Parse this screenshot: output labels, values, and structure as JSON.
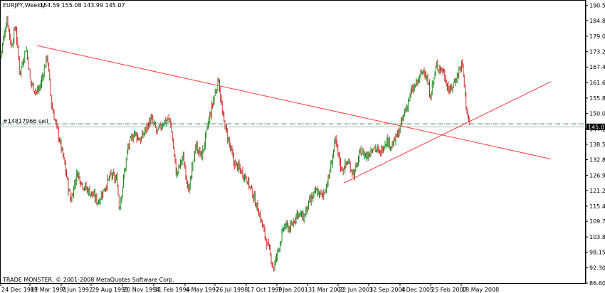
{
  "header": {
    "symbol_timeframe": "EURJPY,Weekly",
    "ohlc": "154.59 155.08 143.99 145.07"
  },
  "order_label": "#14817966 sell",
  "price_tag": "145.07",
  "footer": "TRADE MONSTER, © 2001-2008 MetaQuotes Software Corp.",
  "colors": {
    "bull": "#228b22",
    "bear": "#d22b2b",
    "trendline": "#ff3a3a",
    "order_line": "#2e8b57",
    "price_line": "#b0b0b0",
    "tag_bg": "#000000",
    "tag_fg": "#ffffff"
  },
  "chart_data": {
    "type": "candlestick",
    "y_ticks": [
      "190.55",
      "184.85",
      "179.00",
      "173.20",
      "167.45",
      "161.60",
      "155.85",
      "150.05",
      "144.25",
      "138.50",
      "132.80",
      "126.95",
      "121.25",
      "115.40",
      "109.70",
      "103.85",
      "98.15",
      "92.30",
      "86.60"
    ],
    "x_ticks": [
      "24 Dec 1989",
      "17 Mar 1991",
      "7 Jun 1992",
      "29 Aug 1993",
      "20 Nov 1994",
      "11 Feb 1996",
      "4 May 1997",
      "26 Jul 1998",
      "17 Oct 1999",
      "7 Jan 2001",
      "31 Mar 2002",
      "22 Jun 2003",
      "12 Sep 2004",
      "4 Dec 2005",
      "25 Feb 2007",
      "18 May 2008"
    ],
    "ylim": [
      86.6,
      192
    ],
    "order_level": 146.2,
    "current_price": 145.07,
    "path": [
      [
        0,
        172
      ],
      [
        1.5,
        186
      ],
      [
        2.5,
        175
      ],
      [
        3.5,
        183
      ],
      [
        4.5,
        165
      ],
      [
        6,
        175
      ],
      [
        7,
        162
      ],
      [
        8.5,
        158
      ],
      [
        9.3,
        160
      ],
      [
        11,
        172
      ],
      [
        12,
        153
      ],
      [
        13.5,
        143
      ],
      [
        15,
        132
      ],
      [
        16.5,
        117
      ],
      [
        18,
        128
      ],
      [
        19.5,
        123
      ],
      [
        21.5,
        120
      ],
      [
        23,
        117
      ],
      [
        24.5,
        122
      ],
      [
        26,
        127
      ],
      [
        27.5,
        125
      ],
      [
        28,
        114
      ],
      [
        30,
        137
      ],
      [
        31.5,
        143
      ],
      [
        33,
        140
      ],
      [
        34.5,
        145
      ],
      [
        35.5,
        148
      ],
      [
        37,
        143
      ],
      [
        38.5,
        147
      ],
      [
        40,
        148
      ],
      [
        41.5,
        127
      ],
      [
        43,
        134
      ],
      [
        44.5,
        121
      ],
      [
        46,
        138
      ],
      [
        47.5,
        134
      ],
      [
        49,
        146
      ],
      [
        50.5,
        157
      ],
      [
        51.5,
        163
      ],
      [
        52.3,
        150
      ],
      [
        53.5,
        142
      ],
      [
        55,
        132
      ],
      [
        56.5,
        129
      ],
      [
        58,
        126
      ],
      [
        59.5,
        120
      ],
      [
        61,
        113
      ],
      [
        62.5,
        104
      ],
      [
        63.5,
        98
      ],
      [
        64.5,
        92
      ],
      [
        65.5,
        99
      ],
      [
        67,
        108
      ],
      [
        68.5,
        107
      ],
      [
        70,
        113
      ],
      [
        71.5,
        111
      ],
      [
        73,
        117
      ],
      [
        74.5,
        121
      ],
      [
        76,
        119
      ],
      [
        77.5,
        126
      ],
      [
        79,
        140
      ],
      [
        80.5,
        129
      ],
      [
        82,
        132
      ],
      [
        83.5,
        127
      ],
      [
        85,
        136
      ],
      [
        86.5,
        134
      ],
      [
        88,
        138
      ],
      [
        89.5,
        135
      ],
      [
        91,
        140
      ],
      [
        92.5,
        138
      ],
      [
        94,
        143
      ],
      [
        95.5,
        151
      ],
      [
        97,
        158
      ],
      [
        98.5,
        162
      ],
      [
        100,
        167
      ],
      [
        101.5,
        157
      ],
      [
        103,
        168
      ],
      [
        104.5,
        166
      ],
      [
        106,
        158
      ],
      [
        107.5,
        163
      ],
      [
        109,
        169
      ],
      [
        110,
        152
      ],
      [
        110.8,
        145
      ]
    ],
    "trendlines": [
      {
        "from": [
          8.5,
          175.5
        ],
        "to": [
          130,
          133
        ]
      },
      {
        "from": [
          81,
          124
        ],
        "to": [
          130,
          162
        ]
      }
    ]
  }
}
